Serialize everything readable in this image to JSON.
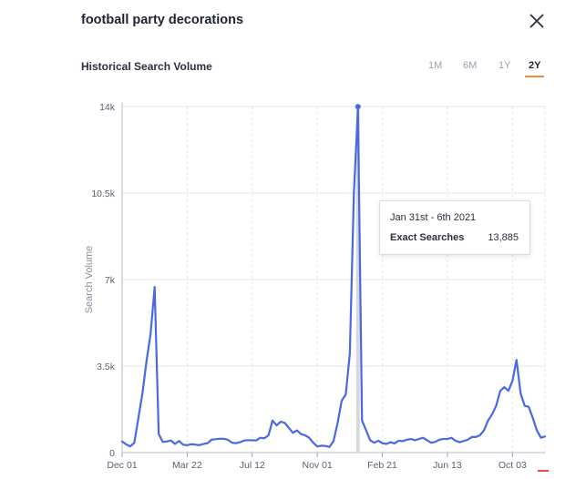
{
  "header": {
    "title": "football party decorations",
    "close_icon": "close-icon"
  },
  "section": {
    "title": "Historical Search Volume",
    "ranges": [
      "1M",
      "6M",
      "1Y",
      "2Y"
    ],
    "active_range": "2Y"
  },
  "tooltip": {
    "date_range": "Jan 31st - 6th 2021",
    "label": "Exact Searches",
    "value": "13,885"
  },
  "colors": {
    "line": "#4a67e4",
    "accent": "#f08a3c",
    "grid": "#e3e5ea",
    "highlight_bar": "#d6d8dd"
  },
  "chart_data": {
    "type": "line",
    "ylabel": "Search Volume",
    "ylim": [
      0,
      14000
    ],
    "yticks": [
      0,
      3500,
      7000,
      10500,
      14000
    ],
    "ytick_labels": [
      "0",
      "3.5k",
      "7k",
      "10.5k",
      "14k"
    ],
    "x_tick_labels": [
      "Dec 01",
      "Mar 22",
      "Jul 12",
      "Nov 01",
      "Feb 21",
      "Jun 13",
      "Oct 03"
    ],
    "x_tick_index": [
      0,
      16,
      32,
      48,
      64,
      80,
      96
    ],
    "grid": true,
    "highlight_index": 58,
    "series": [
      {
        "values": [
          450,
          330,
          250,
          400,
          1400,
          2400,
          3700,
          4800,
          6700,
          750,
          430,
          450,
          490,
          350,
          470,
          320,
          300,
          340,
          320,
          300,
          350,
          380,
          520,
          540,
          560,
          560,
          520,
          400,
          380,
          420,
          490,
          500,
          500,
          490,
          600,
          580,
          700,
          1300,
          1100,
          1250,
          1200,
          1000,
          800,
          900,
          750,
          700,
          600,
          400,
          250,
          280,
          270,
          230,
          470,
          1200,
          2100,
          2350,
          4000,
          10500,
          13885,
          1300,
          900,
          500,
          400,
          480,
          380,
          350,
          420,
          370,
          480,
          460,
          520,
          550,
          500,
          550,
          600,
          500,
          400,
          430,
          520,
          550,
          550,
          600,
          480,
          420,
          470,
          520,
          630,
          630,
          700,
          900,
          1300,
          1550,
          1900,
          2500,
          2650,
          2500,
          2900,
          3750,
          2400,
          1900,
          1850,
          1400,
          900,
          600,
          650
        ]
      }
    ]
  }
}
